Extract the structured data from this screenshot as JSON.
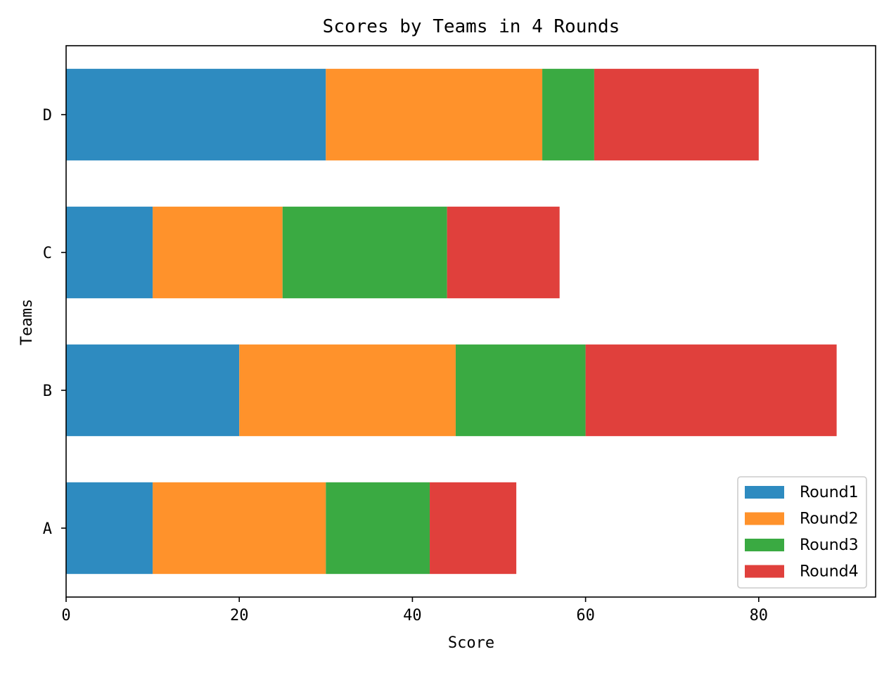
{
  "chart_data": {
    "type": "bar",
    "orientation": "horizontal",
    "stacked": true,
    "title": "Scores by Teams in 4 Rounds",
    "xlabel": "Score",
    "ylabel": "Teams",
    "categories": [
      "A",
      "B",
      "C",
      "D"
    ],
    "series": [
      {
        "name": "Round1",
        "color": "#2e8bc0",
        "values": [
          10,
          20,
          10,
          30
        ]
      },
      {
        "name": "Round2",
        "color": "#ff922b",
        "values": [
          20,
          25,
          15,
          25
        ]
      },
      {
        "name": "Round3",
        "color": "#3aaa42",
        "values": [
          12,
          15,
          19,
          6
        ]
      },
      {
        "name": "Round4",
        "color": "#e0403c",
        "values": [
          10,
          29,
          13,
          19
        ]
      }
    ],
    "xlim": [
      0,
      93.5
    ],
    "xticks": [
      0,
      20,
      40,
      60,
      80
    ],
    "xtick_labels": [
      "0",
      "20",
      "40",
      "60",
      "80"
    ],
    "grid": false,
    "legend_position": "lower right"
  }
}
